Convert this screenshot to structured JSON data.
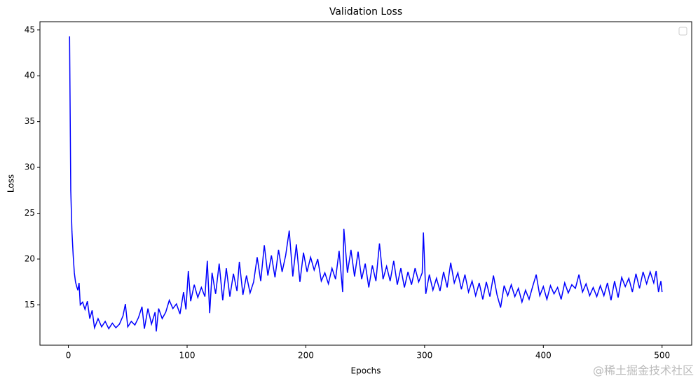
{
  "chart_data": {
    "type": "line",
    "title": "Validation Loss",
    "x_label": "Epochs",
    "y_label": "Loss",
    "watermark": "@稀土掘金技术社区",
    "x": [
      1,
      2,
      3,
      4,
      5,
      6,
      7,
      8,
      9,
      10,
      12,
      14,
      16,
      18,
      20,
      22,
      25,
      28,
      31,
      34,
      37,
      40,
      43,
      46,
      48,
      50,
      53,
      56,
      59,
      62,
      64,
      67,
      70,
      73,
      74,
      76,
      79,
      82,
      85,
      88,
      91,
      94,
      97,
      99,
      101,
      103,
      106,
      109,
      112,
      115,
      117,
      119,
      121,
      124,
      127,
      130,
      133,
      136,
      139,
      142,
      144,
      147,
      150,
      153,
      156,
      159,
      162,
      165,
      168,
      171,
      174,
      177,
      180,
      183,
      186,
      189,
      192,
      195,
      198,
      201,
      204,
      207,
      210,
      213,
      216,
      219,
      222,
      225,
      228,
      231,
      232,
      235,
      238,
      241,
      244,
      247,
      250,
      253,
      256,
      259,
      262,
      265,
      268,
      271,
      274,
      277,
      280,
      283,
      286,
      289,
      292,
      295,
      298,
      299,
      301,
      304,
      307,
      310,
      313,
      316,
      319,
      322,
      325,
      328,
      331,
      334,
      337,
      340,
      343,
      346,
      349,
      352,
      355,
      358,
      361,
      364,
      367,
      370,
      373,
      376,
      379,
      382,
      385,
      388,
      391,
      394,
      397,
      400,
      403,
      406,
      409,
      412,
      415,
      418,
      421,
      424,
      427,
      430,
      433,
      436,
      439,
      442,
      445,
      448,
      451,
      454,
      457,
      460,
      463,
      466,
      469,
      472,
      475,
      478,
      481,
      484,
      487,
      490,
      493,
      495,
      497,
      499,
      500
    ],
    "series": [
      {
        "name": "Validation Loss",
        "color": "#0000ff",
        "values": [
          44.3,
          27.5,
          23,
          20.5,
          18.5,
          17.5,
          17,
          16.6,
          17.4,
          15,
          15.3,
          14.5,
          15.4,
          13.5,
          14.4,
          12.5,
          13.5,
          12.6,
          13.2,
          12.4,
          13.0,
          12.5,
          12.9,
          13.8,
          15.1,
          12.6,
          13.2,
          12.8,
          13.6,
          14.8,
          12.4,
          14.6,
          12.9,
          14.2,
          12.1,
          14.6,
          13.5,
          14.2,
          15.5,
          14.6,
          15.1,
          14.0,
          16.4,
          14.5,
          18.7,
          15.4,
          17.2,
          15.8,
          16.9,
          15.9,
          19.8,
          14.1,
          18.5,
          16.2,
          19.5,
          15.5,
          19.0,
          15.9,
          18.4,
          16.5,
          19.7,
          16.1,
          18.2,
          16.3,
          17.5,
          20.2,
          17.6,
          21.5,
          18.2,
          20.4,
          18.0,
          21.0,
          18.6,
          20.4,
          23.1,
          18.1,
          21.6,
          17.5,
          20.7,
          18.6,
          20.2,
          18.8,
          20.0,
          17.6,
          18.5,
          17.3,
          19.0,
          17.8,
          20.9,
          16.4,
          23.3,
          18.5,
          21.0,
          18.1,
          20.8,
          17.8,
          19.5,
          16.9,
          19.3,
          17.6,
          21.7,
          17.8,
          19.2,
          17.6,
          19.8,
          17.2,
          19.0,
          16.9,
          18.6,
          17.2,
          19.0,
          17.5,
          18.5,
          22.9,
          16.2,
          18.3,
          16.6,
          17.9,
          16.5,
          18.6,
          16.9,
          19.6,
          17.4,
          18.5,
          16.7,
          18.3,
          16.4,
          17.6,
          16.0,
          17.4,
          15.6,
          17.5,
          15.9,
          18.2,
          16.1,
          14.7,
          17.1,
          16.0,
          17.2,
          15.9,
          16.8,
          15.3,
          16.6,
          15.6,
          17.0,
          18.3,
          16.0,
          17.0,
          15.6,
          17.1,
          16.2,
          16.9,
          15.6,
          17.4,
          16.3,
          17.2,
          16.8,
          18.3,
          16.4,
          17.3,
          16.0,
          16.9,
          15.9,
          17.1,
          16.0,
          17.4,
          15.5,
          17.6,
          15.8,
          18.0,
          17.0,
          17.9,
          16.4,
          18.4,
          16.8,
          18.6,
          17.3,
          18.6,
          17.4,
          18.7,
          16.4,
          17.6,
          16.4
        ]
      }
    ],
    "xlim": [
      -23.95,
      524.95
    ],
    "ylim": [
      10.6,
      45.9
    ],
    "xticks": [
      0,
      100,
      200,
      300,
      400,
      500
    ],
    "yticks": [
      15,
      20,
      25,
      30,
      35,
      40,
      45
    ]
  }
}
